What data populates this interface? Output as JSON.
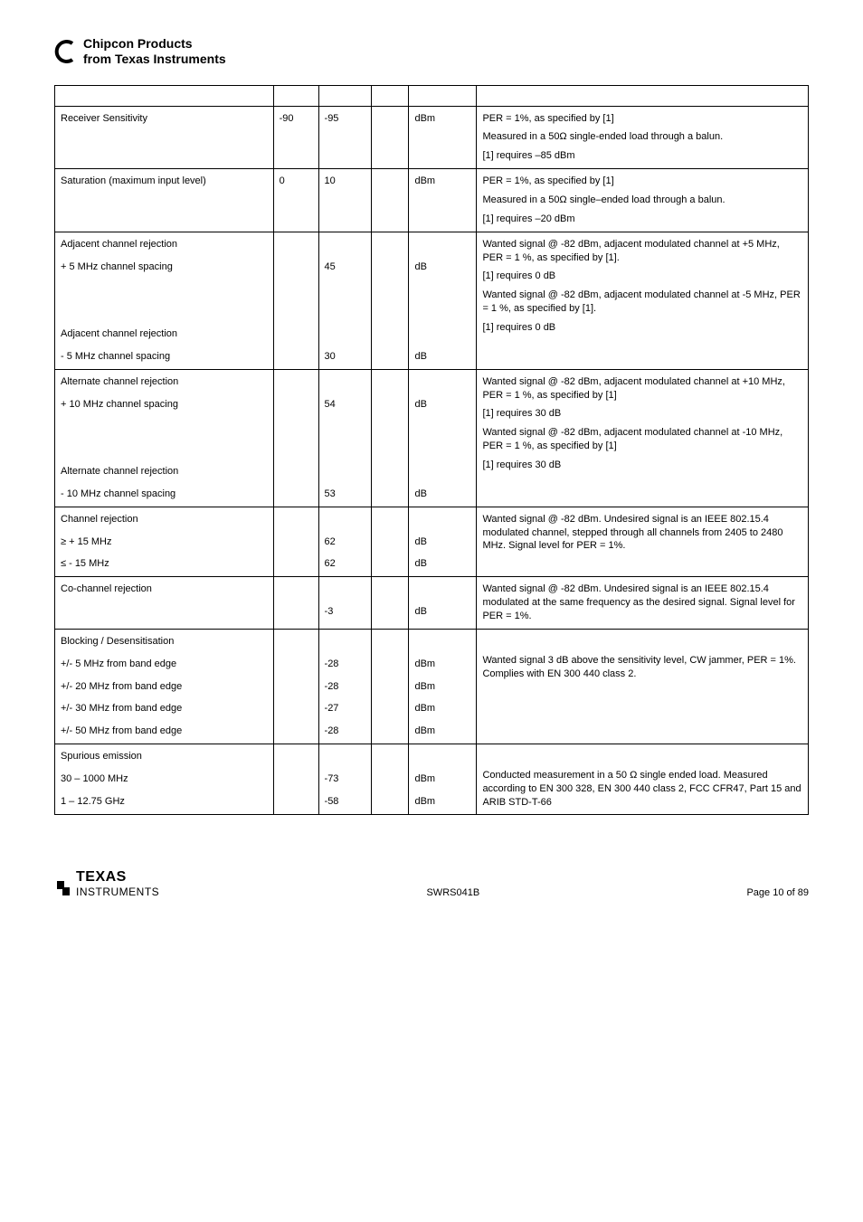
{
  "header": {
    "line1": "Chipcon Products",
    "line2": "from Texas Instruments"
  },
  "rows": [
    {
      "param_lines": [
        "Receiver Sensitivity"
      ],
      "min": "-90",
      "typ": "-95",
      "max": "",
      "unit": "dBm",
      "cond_paras": [
        "PER = 1%, as specified by [1]",
        "Measured in a 50Ω single-ended load through a balun.",
        "[1] requires –85 dBm"
      ]
    },
    {
      "param_lines": [
        "Saturation (maximum input level)"
      ],
      "min": "0",
      "typ": "10",
      "max": "",
      "unit": "dBm",
      "cond_paras": [
        "PER = 1%, as specified by [1]",
        "Measured in a 50Ω single–ended load through a balun.",
        "[1] requires –20 dBm"
      ]
    },
    {
      "param_lines": [
        "Adjacent channel rejection",
        "+ 5 MHz channel spacing",
        "",
        "",
        "Adjacent channel rejection",
        "- 5 MHz channel spacing"
      ],
      "min": "",
      "typ_lines": [
        "",
        "45",
        "",
        "",
        "",
        "30"
      ],
      "max": "",
      "unit_lines": [
        "",
        "dB",
        "",
        "",
        "",
        "dB"
      ],
      "cond_paras": [
        "Wanted signal @ -82 dBm, adjacent modulated channel at +5 MHz, PER = 1 %, as specified by [1].",
        "[1] requires 0 dB",
        "Wanted signal @ -82 dBm, adjacent modulated channel at -5 MHz, PER = 1 %, as specified by [1].",
        "[1] requires 0 dB"
      ]
    },
    {
      "param_lines": [
        "Alternate channel rejection",
        "+ 10 MHz channel spacing",
        "",
        "",
        "Alternate channel rejection",
        "- 10 MHz channel spacing"
      ],
      "min": "",
      "typ_lines": [
        "",
        "54",
        "",
        "",
        "",
        "53"
      ],
      "max": "",
      "unit_lines": [
        "",
        "dB",
        "",
        "",
        "",
        "dB"
      ],
      "cond_paras": [
        "Wanted signal @ -82 dBm, adjacent modulated channel at +10 MHz, PER = 1 %, as specified by [1]",
        "[1] requires 30 dB",
        "Wanted signal @ -82 dBm, adjacent modulated channel at -10 MHz, PER = 1 %, as specified by [1]",
        "[1] requires 30 dB"
      ]
    },
    {
      "param_lines": [
        "Channel rejection",
        "≥ + 15 MHz",
        "≤ - 15 MHz"
      ],
      "min": "",
      "typ_lines": [
        "",
        "62",
        "62"
      ],
      "max": "",
      "unit_lines": [
        "",
        "dB",
        "dB"
      ],
      "cond_paras": [
        "Wanted signal @ -82 dBm. Undesired signal is an IEEE 802.15.4 modulated channel, stepped through all channels from 2405 to 2480 MHz. Signal level for PER = 1%."
      ]
    },
    {
      "param_lines": [
        "Co-channel rejection"
      ],
      "min": "",
      "typ_lines": [
        "",
        "-3"
      ],
      "max": "",
      "unit_lines": [
        "",
        "dB"
      ],
      "cond_paras": [
        "Wanted signal @ -82 dBm. Undesired signal is an IEEE 802.15.4 modulated at the same frequency as the desired signal. Signal level for PER = 1%."
      ]
    },
    {
      "param_lines": [
        "Blocking / Desensitisation",
        "+/- 5 MHz from band edge",
        "+/- 20 MHz from band edge",
        "+/- 30 MHz from band edge",
        "+/- 50 MHz from band edge"
      ],
      "min": "",
      "typ_lines": [
        "",
        "-28",
        "-28",
        "-27",
        "-28"
      ],
      "max": "",
      "unit_lines": [
        "",
        "dBm",
        "dBm",
        "dBm",
        "dBm"
      ],
      "cond_paras": [
        "",
        "Wanted signal 3 dB above the sensitivity level, CW jammer, PER = 1%. Complies with EN 300 440 class 2."
      ]
    },
    {
      "param_lines": [
        "Spurious emission",
        "30 – 1000 MHz",
        "1 – 12.75 GHz"
      ],
      "min": "",
      "typ_lines": [
        "",
        "-73",
        "-58"
      ],
      "max": "",
      "unit_lines": [
        "",
        "dBm",
        "dBm"
      ],
      "cond_paras": [
        "",
        "Conducted measurement in a 50 Ω single ended load. Measured according to EN 300 328, EN 300 440 class 2, FCC CFR47, Part 15 and ARIB STD-T-66"
      ]
    }
  ],
  "footer": {
    "doc": "SWRS041B",
    "page": "Page 10 of 89",
    "logo1": "TEXAS",
    "logo2": "INSTRUMENTS"
  }
}
